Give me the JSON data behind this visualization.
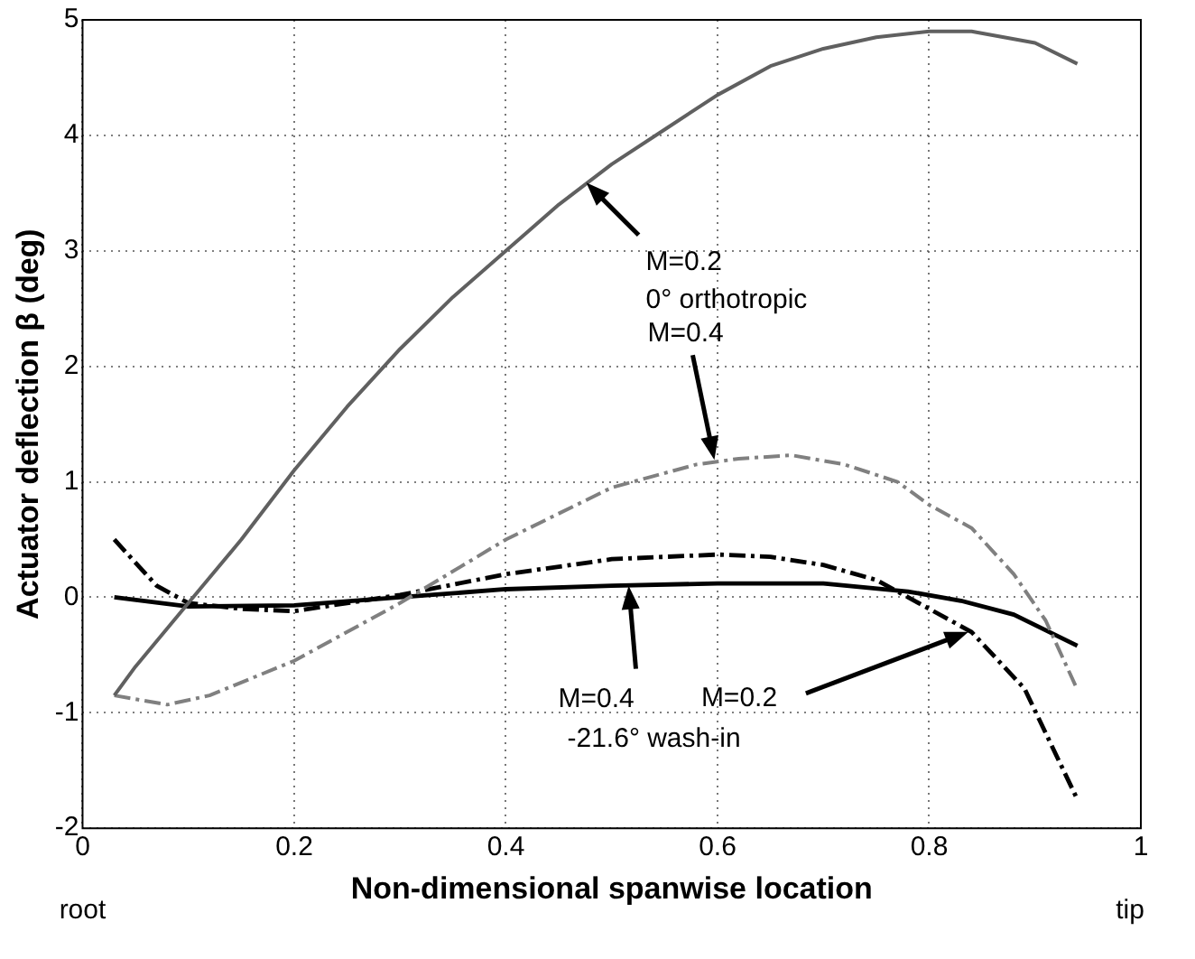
{
  "chart_data": {
    "type": "line",
    "xlabel": "Non-dimensional spanwise location",
    "ylabel": "Actuator deflection β (deg)",
    "xlim": [
      0,
      1
    ],
    "xticks": [
      0,
      0.2,
      0.4,
      0.6,
      0.8,
      1
    ],
    "ylim": [
      -2,
      5
    ],
    "yticks": [
      -2,
      -1,
      0,
      1,
      2,
      3,
      4,
      5
    ],
    "grid": true,
    "marker": "none",
    "series": [
      {
        "color": "#606060",
        "line_style": "solid",
        "x": [
          0.03,
          0.05,
          0.1,
          0.15,
          0.2,
          0.25,
          0.3,
          0.35,
          0.4,
          0.45,
          0.5,
          0.55,
          0.6,
          0.65,
          0.7,
          0.75,
          0.8,
          0.84,
          0.9,
          0.94
        ],
        "values": [
          -0.85,
          -0.6,
          -0.05,
          0.5,
          1.1,
          1.65,
          2.15,
          2.6,
          3.0,
          3.4,
          3.75,
          4.05,
          4.35,
          4.6,
          4.75,
          4.85,
          4.9,
          4.9,
          4.8,
          4.62
        ]
      },
      {
        "color": "#808080",
        "line_style": "dashdot",
        "x": [
          0.03,
          0.08,
          0.12,
          0.2,
          0.3,
          0.4,
          0.5,
          0.58,
          0.62,
          0.67,
          0.72,
          0.77,
          0.8,
          0.84,
          0.88,
          0.91,
          0.94
        ],
        "values": [
          -0.85,
          -0.93,
          -0.85,
          -0.55,
          -0.05,
          0.5,
          0.95,
          1.15,
          1.2,
          1.23,
          1.15,
          1.0,
          0.8,
          0.6,
          0.2,
          -0.2,
          -0.8
        ]
      },
      {
        "color": "#000000",
        "line_style": "dashdot",
        "x": [
          0.03,
          0.07,
          0.1,
          0.15,
          0.2,
          0.25,
          0.3,
          0.4,
          0.5,
          0.6,
          0.65,
          0.7,
          0.75,
          0.8,
          0.84,
          0.89,
          0.94
        ],
        "values": [
          0.5,
          0.1,
          -0.05,
          -0.1,
          -0.12,
          -0.05,
          0.02,
          0.2,
          0.33,
          0.37,
          0.35,
          0.28,
          0.15,
          -0.1,
          -0.3,
          -0.79,
          -1.75
        ]
      },
      {
        "color": "#000000",
        "line_style": "solid",
        "x": [
          0.03,
          0.1,
          0.2,
          0.3,
          0.4,
          0.5,
          0.6,
          0.7,
          0.78,
          0.83,
          0.88,
          0.94
        ],
        "values": [
          0,
          -0.08,
          -0.07,
          0,
          0.07,
          0.1,
          0.12,
          0.12,
          0.05,
          -0.03,
          -0.15,
          -0.42
        ]
      }
    ],
    "annotations": [
      {
        "text": "M=0.2",
        "x": 0.476,
        "y": 3.59
      },
      "0° orthotropic",
      {
        "text": "M=0.4",
        "x": 0.597,
        "y": 1.19
      },
      {
        "text": "M=0.4",
        "x": 0.516,
        "y": 0.1
      },
      {
        "text": "M=0.2",
        "x": 0.837,
        "y": -0.3
      },
      "-21.6° wash-in",
      "root",
      "tip"
    ]
  }
}
